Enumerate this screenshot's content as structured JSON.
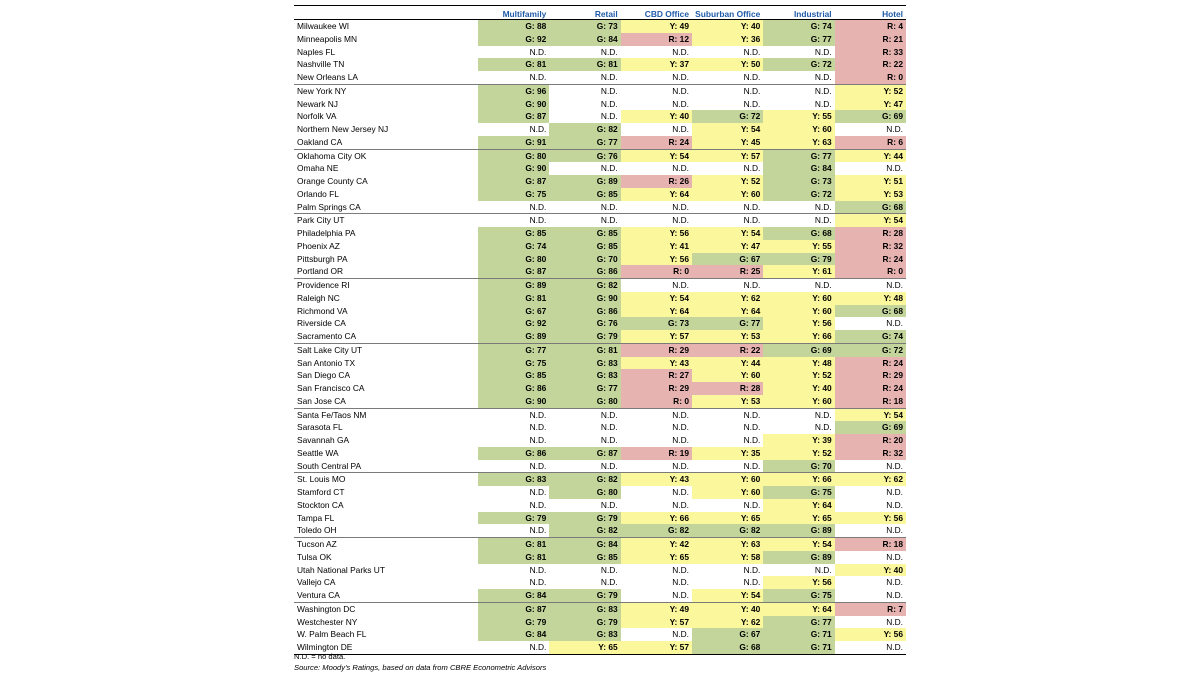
{
  "headers": [
    "Multifamily",
    "Retail",
    "CBD Office",
    "Suburban Office",
    "Industrial",
    "Hotel"
  ],
  "rows": [
    {
      "city": "Milwaukee WI",
      "vals": [
        "G: 88",
        "G: 73",
        "Y: 49",
        "Y: 40",
        "G: 74",
        "R: 4"
      ]
    },
    {
      "city": "Minneapolis MN",
      "vals": [
        "G: 92",
        "G: 84",
        "R: 12",
        "Y: 36",
        "G: 77",
        "R: 21"
      ]
    },
    {
      "city": "Naples FL",
      "vals": [
        "N.D.",
        "N.D.",
        "N.D.",
        "N.D.",
        "N.D.",
        "R: 33"
      ]
    },
    {
      "city": "Nashville TN",
      "vals": [
        "G: 81",
        "G: 81",
        "Y: 37",
        "Y: 50",
        "G: 72",
        "R: 22"
      ]
    },
    {
      "city": "New Orleans LA",
      "vals": [
        "N.D.",
        "N.D.",
        "N.D.",
        "N.D.",
        "N.D.",
        "R: 0"
      ]
    },
    {
      "city": "New York NY",
      "vals": [
        "G: 96",
        "N.D.",
        "N.D.",
        "N.D.",
        "N.D.",
        "Y: 52"
      ]
    },
    {
      "city": "Newark NJ",
      "vals": [
        "G: 90",
        "N.D.",
        "N.D.",
        "N.D.",
        "N.D.",
        "Y: 47"
      ]
    },
    {
      "city": "Norfolk VA",
      "vals": [
        "G: 87",
        "N.D.",
        "Y: 40",
        "G: 72",
        "Y: 55",
        "G: 69"
      ]
    },
    {
      "city": "Northern New Jersey NJ",
      "vals": [
        "N.D.",
        "G: 82",
        "N.D.",
        "Y: 54",
        "Y: 60",
        "N.D."
      ]
    },
    {
      "city": "Oakland CA",
      "vals": [
        "G: 91",
        "G: 77",
        "R: 24",
        "Y: 45",
        "Y: 63",
        "R: 6"
      ]
    },
    {
      "city": "Oklahoma City OK",
      "vals": [
        "G: 80",
        "G: 76",
        "Y: 54",
        "Y: 57",
        "G: 77",
        "Y: 44"
      ]
    },
    {
      "city": "Omaha NE",
      "vals": [
        "G: 90",
        "N.D.",
        "N.D.",
        "N.D.",
        "G: 84",
        "N.D."
      ]
    },
    {
      "city": "Orange County CA",
      "vals": [
        "G: 87",
        "G: 89",
        "R: 26",
        "Y: 52",
        "G: 73",
        "Y: 51"
      ]
    },
    {
      "city": "Orlando FL",
      "vals": [
        "G: 75",
        "G: 85",
        "Y: 64",
        "Y: 60",
        "G: 72",
        "Y: 53"
      ]
    },
    {
      "city": "Palm Springs CA",
      "vals": [
        "N.D.",
        "N.D.",
        "N.D.",
        "N.D.",
        "N.D.",
        "G: 68"
      ]
    },
    {
      "city": "Park City UT",
      "vals": [
        "N.D.",
        "N.D.",
        "N.D.",
        "N.D.",
        "N.D.",
        "Y: 54"
      ]
    },
    {
      "city": "Philadelphia PA",
      "vals": [
        "G: 85",
        "G: 85",
        "Y: 56",
        "Y: 54",
        "G: 68",
        "R: 28"
      ]
    },
    {
      "city": "Phoenix AZ",
      "vals": [
        "G: 74",
        "G: 85",
        "Y: 41",
        "Y: 47",
        "Y: 55",
        "R: 32"
      ]
    },
    {
      "city": "Pittsburgh PA",
      "vals": [
        "G: 80",
        "G: 70",
        "Y: 56",
        "G: 67",
        "G: 79",
        "R: 24"
      ]
    },
    {
      "city": "Portland OR",
      "vals": [
        "G: 87",
        "G: 86",
        "R: 0",
        "R: 25",
        "Y: 61",
        "R: 0"
      ]
    },
    {
      "city": "Providence RI",
      "vals": [
        "G: 89",
        "G: 82",
        "N.D.",
        "N.D.",
        "N.D.",
        "N.D."
      ]
    },
    {
      "city": "Raleigh NC",
      "vals": [
        "G: 81",
        "G: 90",
        "Y: 54",
        "Y: 62",
        "Y: 60",
        "Y: 48"
      ]
    },
    {
      "city": "Richmond VA",
      "vals": [
        "G: 67",
        "G: 86",
        "Y: 64",
        "Y: 64",
        "Y: 60",
        "G: 68"
      ]
    },
    {
      "city": "Riverside CA",
      "vals": [
        "G: 92",
        "G: 76",
        "G: 73",
        "G: 77",
        "Y: 56",
        "N.D."
      ]
    },
    {
      "city": "Sacramento CA",
      "vals": [
        "G: 89",
        "G: 79",
        "Y: 57",
        "Y: 53",
        "Y: 66",
        "G: 74"
      ]
    },
    {
      "city": "Salt Lake City UT",
      "vals": [
        "G: 77",
        "G: 81",
        "R: 29",
        "R: 22",
        "G: 69",
        "G: 72"
      ]
    },
    {
      "city": "San Antonio TX",
      "vals": [
        "G: 75",
        "G: 83",
        "Y: 43",
        "Y: 44",
        "Y: 48",
        "R: 24"
      ]
    },
    {
      "city": "San Diego CA",
      "vals": [
        "G: 85",
        "G: 83",
        "R: 27",
        "Y: 60",
        "Y: 52",
        "R: 29"
      ]
    },
    {
      "city": "San Francisco CA",
      "vals": [
        "G: 86",
        "G: 77",
        "R: 29",
        "R: 28",
        "Y: 40",
        "R: 24"
      ]
    },
    {
      "city": "San Jose CA",
      "vals": [
        "G: 90",
        "G: 80",
        "R: 0",
        "Y: 53",
        "Y: 60",
        "R: 18"
      ]
    },
    {
      "city": "Santa Fe/Taos NM",
      "vals": [
        "N.D.",
        "N.D.",
        "N.D.",
        "N.D.",
        "N.D.",
        "Y: 54"
      ]
    },
    {
      "city": "Sarasota FL",
      "vals": [
        "N.D.",
        "N.D.",
        "N.D.",
        "N.D.",
        "N.D.",
        "G: 69"
      ]
    },
    {
      "city": "Savannah GA",
      "vals": [
        "N.D.",
        "N.D.",
        "N.D.",
        "N.D.",
        "Y: 39",
        "R: 20"
      ]
    },
    {
      "city": "Seattle WA",
      "vals": [
        "G: 86",
        "G: 87",
        "R: 19",
        "Y: 35",
        "Y: 52",
        "R: 32"
      ]
    },
    {
      "city": "South Central PA",
      "vals": [
        "N.D.",
        "N.D.",
        "N.D.",
        "N.D.",
        "G: 70",
        "N.D."
      ]
    },
    {
      "city": "St. Louis MO",
      "vals": [
        "G: 83",
        "G: 82",
        "Y: 43",
        "Y: 60",
        "Y: 66",
        "Y: 62"
      ]
    },
    {
      "city": "Stamford CT",
      "vals": [
        "N.D.",
        "G: 80",
        "N.D.",
        "Y: 60",
        "G: 75",
        "N.D."
      ]
    },
    {
      "city": "Stockton CA",
      "vals": [
        "N.D.",
        "N.D.",
        "N.D.",
        "N.D.",
        "Y: 64",
        "N.D."
      ]
    },
    {
      "city": "Tampa FL",
      "vals": [
        "G: 79",
        "G: 79",
        "Y: 66",
        "Y: 65",
        "Y: 65",
        "Y: 56"
      ]
    },
    {
      "city": "Toledo OH",
      "vals": [
        "N.D.",
        "G: 82",
        "G: 82",
        "G: 82",
        "G: 89",
        "N.D."
      ]
    },
    {
      "city": "Tucson AZ",
      "vals": [
        "G: 81",
        "G: 84",
        "Y: 42",
        "Y: 63",
        "Y: 54",
        "R: 18"
      ]
    },
    {
      "city": "Tulsa OK",
      "vals": [
        "G: 81",
        "G: 85",
        "Y: 65",
        "Y: 58",
        "G: 89",
        "N.D."
      ]
    },
    {
      "city": "Utah National Parks UT",
      "vals": [
        "N.D.",
        "N.D.",
        "N.D.",
        "N.D.",
        "N.D.",
        "Y: 40"
      ]
    },
    {
      "city": "Vallejo CA",
      "vals": [
        "N.D.",
        "N.D.",
        "N.D.",
        "N.D.",
        "Y: 56",
        "N.D."
      ]
    },
    {
      "city": "Ventura CA",
      "vals": [
        "G: 84",
        "G: 79",
        "N.D.",
        "Y: 54",
        "G: 75",
        "N.D."
      ]
    },
    {
      "city": "Washington DC",
      "vals": [
        "G: 87",
        "G: 83",
        "Y: 49",
        "Y: 40",
        "Y: 64",
        "R: 7"
      ]
    },
    {
      "city": "Westchester NY",
      "vals": [
        "G: 79",
        "G: 79",
        "Y: 57",
        "Y: 62",
        "G: 77",
        "N.D."
      ]
    },
    {
      "city": "W. Palm Beach FL",
      "vals": [
        "G: 84",
        "G: 83",
        "N.D.",
        "G: 67",
        "G: 71",
        "Y: 56"
      ]
    },
    {
      "city": "Wilmington DE",
      "vals": [
        "N.D.",
        "Y: 65",
        "Y: 57",
        "G: 68",
        "G: 71",
        "N.D."
      ]
    }
  ],
  "notes": {
    "nd": "N.D. = no data.",
    "source": "Source: Moody's Ratings, based on data from CBRE Econometric Advisors"
  },
  "colors": {
    "green": "#c3d59a",
    "yellow": "#fbf79c",
    "red": "#e6b3b1",
    "header_text": "#1f5aa8"
  }
}
